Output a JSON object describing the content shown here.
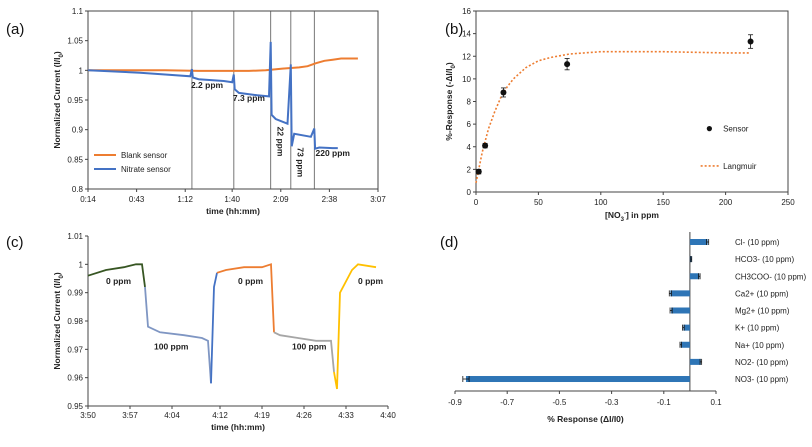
{
  "chart_data": [
    {
      "panel_label": "(a)",
      "type": "line",
      "xlabel": "time (hh:mm)",
      "ylabel": "Normalized Current (I/I0)",
      "ylim": [
        0.8,
        1.1
      ],
      "yticks": [
        "0.8",
        "0.85",
        "0.9",
        "0.95",
        "1",
        "1.05",
        "1.1"
      ],
      "xticks": [
        "0:14",
        "0:43",
        "1:12",
        "1:40",
        "2:09",
        "2:38",
        "3:07"
      ],
      "x_minutes": [
        14,
        43,
        72,
        100,
        129,
        158,
        187
      ],
      "legend": [
        "Blank sensor",
        "Nitrate sensor"
      ],
      "legend_position": "lower-left",
      "annotations": [
        "2.2 ppm",
        "7.3 ppm",
        "22 ppm",
        "73 ppm",
        "220 ppm"
      ],
      "additions_minutes": [
        76,
        101,
        123,
        135,
        149
      ],
      "series": [
        {
          "name": "Blank sensor",
          "color": "#ED7D31",
          "x": [
            14,
            40,
            60,
            80,
            100,
            110,
            120,
            130,
            140,
            145,
            150,
            155,
            160,
            165,
            170,
            175
          ],
          "y": [
            1.0,
            1.0,
            1.0,
            0.999,
            0.999,
            0.999,
            1.0,
            1.003,
            1.005,
            1.007,
            1.012,
            1.016,
            1.018,
            1.02,
            1.02,
            1.02
          ]
        },
        {
          "name": "Nitrate sensor",
          "color": "#4472C4",
          "x": [
            14,
            30,
            45,
            60,
            75,
            76,
            76.5,
            80,
            95,
            100,
            101,
            101.5,
            104,
            115,
            122,
            123,
            123.5,
            126,
            133,
            135,
            135.5,
            137,
            147,
            149,
            149.5,
            152,
            160,
            163
          ],
          "y": [
            1.0,
            0.998,
            0.996,
            0.993,
            0.99,
            1.002,
            0.988,
            0.985,
            0.982,
            0.98,
            0.993,
            0.968,
            0.962,
            0.958,
            0.956,
            1.048,
            0.925,
            0.918,
            0.91,
            1.01,
            0.872,
            0.893,
            0.888,
            0.902,
            0.868,
            0.87,
            0.869,
            0.869
          ]
        }
      ]
    },
    {
      "panel_label": "(b)",
      "type": "scatter",
      "xlabel": "[NO3-] in ppm",
      "ylabel": "%-Response (-ΔI/I0)",
      "xlim": [
        0,
        250
      ],
      "ylim": [
        0,
        16
      ],
      "xticks": [
        "0",
        "50",
        "100",
        "150",
        "200",
        "250"
      ],
      "yticks": [
        "0",
        "2",
        "4",
        "6",
        "8",
        "10",
        "12",
        "14",
        "16"
      ],
      "legend": [
        "Sensor",
        "Langmuir"
      ],
      "legend_position": "right",
      "series": [
        {
          "name": "Sensor",
          "color": "#111111",
          "x": [
            2.2,
            7.3,
            22,
            73,
            220
          ],
          "y": [
            1.8,
            4.1,
            8.8,
            11.3,
            13.3
          ],
          "err": [
            0.2,
            0.2,
            0.4,
            0.5,
            0.6
          ]
        },
        {
          "name": "Langmuir",
          "color": "#ED7D31",
          "style": "dotted",
          "x": [
            0,
            5,
            10,
            15,
            20,
            25,
            30,
            40,
            50,
            60,
            75,
            100,
            150,
            200,
            220
          ],
          "y": [
            0.8,
            3.5,
            5.6,
            7.1,
            8.4,
            9.3,
            10.0,
            11.0,
            11.6,
            11.9,
            12.2,
            12.4,
            12.4,
            12.3,
            12.3
          ]
        }
      ]
    },
    {
      "panel_label": "(c)",
      "type": "line",
      "xlabel": "time (hh:mm)",
      "ylabel": "Normalized Current (I/I0)",
      "ylim": [
        0.95,
        1.01
      ],
      "yticks": [
        "0.95",
        "0.96",
        "0.97",
        "0.98",
        "0.99",
        "1",
        "1.01"
      ],
      "xticks": [
        "3:50",
        "3:57",
        "4:04",
        "4:12",
        "4:19",
        "4:26",
        "4:33",
        "4:40"
      ],
      "x_minutes": [
        230,
        237,
        244,
        252,
        259,
        266,
        273,
        280
      ],
      "annotations": [
        "0 ppm",
        "100 ppm",
        "0 ppm",
        "100 ppm",
        "0 ppm"
      ],
      "series": [
        {
          "color": "#375623",
          "x": [
            230,
            233,
            236,
            238,
            239,
            239.5
          ],
          "y": [
            0.996,
            0.998,
            0.999,
            1.0,
            1.0,
            0.992
          ]
        },
        {
          "color": "#7F96C3",
          "x": [
            239.5,
            240,
            242,
            246,
            249,
            250,
            250.5
          ],
          "y": [
            0.992,
            0.978,
            0.976,
            0.975,
            0.974,
            0.973,
            0.958
          ]
        },
        {
          "color": "#4472C4",
          "x": [
            250.5,
            251,
            251.5
          ],
          "y": [
            0.958,
            0.992,
            0.997
          ]
        },
        {
          "color": "#ED7D31",
          "x": [
            251.5,
            253,
            256,
            259,
            260.5,
            261
          ],
          "y": [
            0.997,
            0.998,
            0.999,
            0.999,
            1.0,
            0.976
          ]
        },
        {
          "color": "#A6A6A6",
          "x": [
            261,
            262,
            265,
            268,
            270.5,
            271
          ],
          "y": [
            0.976,
            0.975,
            0.974,
            0.973,
            0.973,
            0.962
          ]
        },
        {
          "color": "#FFC000",
          "x": [
            271,
            271.5,
            272,
            274,
            275,
            278
          ],
          "y": [
            0.962,
            0.956,
            0.99,
            0.998,
            1.0,
            0.999
          ]
        }
      ]
    },
    {
      "panel_label": "(d)",
      "type": "bar",
      "orientation": "horizontal",
      "xlabel": "% Response (ΔI/I0)",
      "xlim": [
        -0.9,
        0.1
      ],
      "xticks": [
        "-0.9",
        "-0.7",
        "-0.5",
        "-0.3",
        "-0.1",
        "0.1"
      ],
      "tick_values": [
        -0.9,
        -0.7,
        -0.5,
        -0.3,
        -0.1,
        0.1
      ],
      "categories": [
        "Cl- (10 ppm)",
        "HCO3- (10 ppm)",
        "CH3COO- (10 ppm)",
        "Ca2+ (10 ppm)",
        "Mg2+ (10 ppm)",
        "K+ (10 ppm)",
        "Na+ (10 ppm)",
        "NO2- (10 ppm)",
        "NO3- (10 ppm)"
      ],
      "values": [
        0.068,
        0.005,
        0.036,
        -0.075,
        -0.072,
        -0.025,
        -0.035,
        0.042,
        -0.858
      ],
      "errors": [
        0.004,
        0.002,
        0.003,
        0.004,
        0.004,
        0.003,
        0.003,
        0.003,
        0.012
      ],
      "color": "#2E75B6"
    }
  ]
}
